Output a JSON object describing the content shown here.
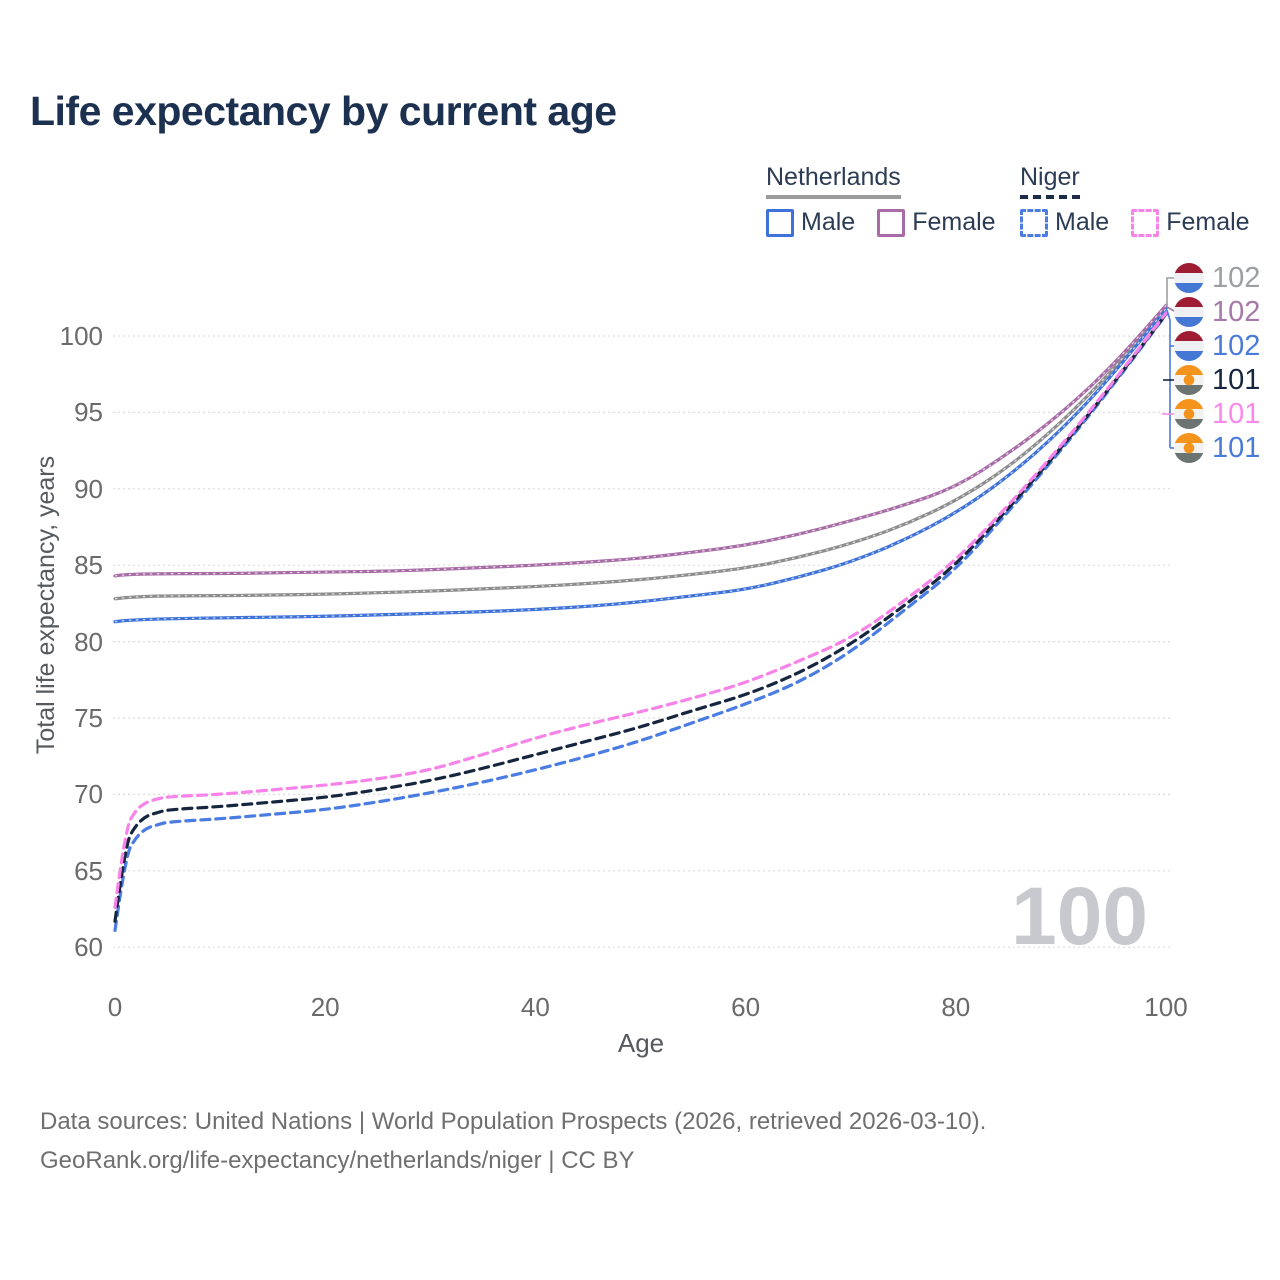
{
  "title": "Life expectancy by current age",
  "watermark_age": "100",
  "legend": {
    "groups": [
      {
        "name": "Netherlands",
        "line_style": "solid",
        "underline_color": "#9b9b9b",
        "items": [
          {
            "label": "Male",
            "color": "#3e72d9",
            "dashed": false
          },
          {
            "label": "Female",
            "color": "#a76ca6",
            "dashed": false
          }
        ]
      },
      {
        "name": "Niger",
        "line_style": "dashed",
        "underline_color": "#1e2c49",
        "items": [
          {
            "label": "Male",
            "color": "#4a7ce2",
            "dashed": true
          },
          {
            "label": "Female",
            "color": "#f783e8",
            "dashed": true
          }
        ]
      }
    ]
  },
  "chart_data": {
    "type": "line",
    "title": "Life expectancy by current age",
    "xlabel": "Age",
    "ylabel": "Total life expectancy, years",
    "x_ticks": [
      0,
      20,
      40,
      60,
      80,
      100
    ],
    "y_ticks": [
      60,
      65,
      70,
      75,
      80,
      85,
      90,
      95,
      100
    ],
    "xlim": [
      0,
      100
    ],
    "ylim": [
      59.5,
      103
    ],
    "grid": "horizontal-dotted",
    "legend_position": "top-right",
    "series": [
      {
        "name": "Netherlands All",
        "country": "Netherlands",
        "sex": "All",
        "color": "#8d8d8d",
        "line_style": "solid",
        "end_label": "102",
        "points": [
          [
            0,
            82.8
          ],
          [
            1,
            82.9
          ],
          [
            5,
            83.0
          ],
          [
            10,
            83.0
          ],
          [
            15,
            83.05
          ],
          [
            20,
            83.1
          ],
          [
            25,
            83.2
          ],
          [
            30,
            83.3
          ],
          [
            35,
            83.45
          ],
          [
            40,
            83.6
          ],
          [
            45,
            83.8
          ],
          [
            50,
            84.05
          ],
          [
            55,
            84.4
          ],
          [
            60,
            84.8
          ],
          [
            65,
            85.5
          ],
          [
            70,
            86.4
          ],
          [
            75,
            87.6
          ],
          [
            80,
            89.2
          ],
          [
            85,
            91.4
          ],
          [
            90,
            94.3
          ],
          [
            95,
            97.8
          ],
          [
            100,
            101.9
          ]
        ]
      },
      {
        "name": "Netherlands Male",
        "country": "Netherlands",
        "sex": "Male",
        "color": "#3e72d9",
        "line_style": "solid",
        "end_label": "102",
        "points": [
          [
            0,
            81.3
          ],
          [
            1,
            81.4
          ],
          [
            5,
            81.5
          ],
          [
            10,
            81.55
          ],
          [
            15,
            81.6
          ],
          [
            20,
            81.65
          ],
          [
            25,
            81.75
          ],
          [
            30,
            81.85
          ],
          [
            35,
            81.95
          ],
          [
            40,
            82.1
          ],
          [
            45,
            82.3
          ],
          [
            50,
            82.6
          ],
          [
            55,
            83.0
          ],
          [
            60,
            83.4
          ],
          [
            65,
            84.2
          ],
          [
            70,
            85.2
          ],
          [
            75,
            86.6
          ],
          [
            80,
            88.4
          ],
          [
            85,
            90.8
          ],
          [
            90,
            93.8
          ],
          [
            95,
            97.5
          ],
          [
            100,
            101.8
          ]
        ]
      },
      {
        "name": "Netherlands Female",
        "country": "Netherlands",
        "sex": "Female",
        "color": "#a76ca6",
        "line_style": "solid",
        "end_label": "102",
        "points": [
          [
            0,
            84.3
          ],
          [
            1,
            84.4
          ],
          [
            5,
            84.45
          ],
          [
            10,
            84.45
          ],
          [
            15,
            84.5
          ],
          [
            20,
            84.55
          ],
          [
            25,
            84.6
          ],
          [
            30,
            84.7
          ],
          [
            35,
            84.85
          ],
          [
            40,
            85.0
          ],
          [
            45,
            85.2
          ],
          [
            50,
            85.45
          ],
          [
            55,
            85.85
          ],
          [
            60,
            86.3
          ],
          [
            65,
            87.0
          ],
          [
            70,
            87.9
          ],
          [
            75,
            88.9
          ],
          [
            80,
            90.1
          ],
          [
            85,
            92.3
          ],
          [
            90,
            94.9
          ],
          [
            95,
            98.1
          ],
          [
            100,
            102.0
          ]
        ]
      },
      {
        "name": "Niger Male",
        "country": "Niger",
        "sex": "Male",
        "color": "#4a7ce2",
        "line_style": "dashed",
        "end_label": "101",
        "points": [
          [
            0,
            61.1
          ],
          [
            1,
            66.0
          ],
          [
            2,
            67.2
          ],
          [
            3,
            67.8
          ],
          [
            4,
            68.0
          ],
          [
            5,
            68.2
          ],
          [
            10,
            68.4
          ],
          [
            15,
            68.7
          ],
          [
            20,
            69.0
          ],
          [
            25,
            69.5
          ],
          [
            30,
            70.1
          ],
          [
            35,
            70.8
          ],
          [
            40,
            71.6
          ],
          [
            45,
            72.5
          ],
          [
            50,
            73.5
          ],
          [
            55,
            74.7
          ],
          [
            60,
            75.9
          ],
          [
            65,
            77.3
          ],
          [
            70,
            79.3
          ],
          [
            75,
            82.0
          ],
          [
            80,
            84.7
          ],
          [
            85,
            88.5
          ],
          [
            90,
            92.5
          ],
          [
            95,
            96.8
          ],
          [
            100,
            101.4
          ]
        ]
      },
      {
        "name": "Niger All",
        "country": "Niger",
        "sex": "All",
        "color": "#17263f",
        "line_style": "dashed",
        "end_label": "101",
        "points": [
          [
            0,
            61.7
          ],
          [
            1,
            66.8
          ],
          [
            2,
            68.0
          ],
          [
            3,
            68.6
          ],
          [
            4,
            68.8
          ],
          [
            5,
            69.0
          ],
          [
            10,
            69.2
          ],
          [
            15,
            69.5
          ],
          [
            20,
            69.8
          ],
          [
            25,
            70.3
          ],
          [
            30,
            70.9
          ],
          [
            35,
            71.7
          ],
          [
            40,
            72.6
          ],
          [
            45,
            73.5
          ],
          [
            50,
            74.4
          ],
          [
            55,
            75.5
          ],
          [
            60,
            76.5
          ],
          [
            65,
            77.9
          ],
          [
            70,
            79.8
          ],
          [
            75,
            82.3
          ],
          [
            80,
            85.0
          ],
          [
            85,
            88.7
          ],
          [
            90,
            92.65
          ],
          [
            95,
            96.9
          ],
          [
            100,
            101.45
          ]
        ]
      },
      {
        "name": "Niger Female",
        "country": "Niger",
        "sex": "Female",
        "color": "#f783e8",
        "line_style": "dashed",
        "end_label": "101",
        "points": [
          [
            0,
            62.6
          ],
          [
            1,
            67.8
          ],
          [
            2,
            69.0
          ],
          [
            3,
            69.5
          ],
          [
            4,
            69.7
          ],
          [
            5,
            69.85
          ],
          [
            10,
            70.0
          ],
          [
            15,
            70.3
          ],
          [
            20,
            70.6
          ],
          [
            25,
            71.0
          ],
          [
            30,
            71.6
          ],
          [
            35,
            72.6
          ],
          [
            40,
            73.7
          ],
          [
            45,
            74.6
          ],
          [
            50,
            75.4
          ],
          [
            55,
            76.3
          ],
          [
            60,
            77.3
          ],
          [
            65,
            78.7
          ],
          [
            70,
            80.2
          ],
          [
            75,
            82.6
          ],
          [
            80,
            85.3
          ],
          [
            85,
            88.9
          ],
          [
            90,
            92.8
          ],
          [
            95,
            97.0
          ],
          [
            100,
            101.5
          ]
        ]
      }
    ]
  },
  "end_labels": [
    {
      "flag": "netherlands",
      "value": "102",
      "color": "#9b9fa3"
    },
    {
      "flag": "netherlands",
      "value": "102",
      "color": "#a57aaa"
    },
    {
      "flag": "netherlands",
      "value": "102",
      "color": "#4a7bd9"
    },
    {
      "flag": "niger",
      "value": "101",
      "color": "#17263f"
    },
    {
      "flag": "niger",
      "value": "101",
      "color": "#f98ae9"
    },
    {
      "flag": "niger",
      "value": "101",
      "color": "#4a7bd9"
    }
  ],
  "flags": {
    "netherlands": {
      "top": "#9f1d33",
      "middle": "#eef0f3",
      "bottom": "#4478d4"
    },
    "niger": {
      "top": "#f5941d",
      "middle": "#f2f2f0",
      "bottom": "#6b7470",
      "dot": "#f5941d"
    }
  },
  "footer": {
    "line1": "Data sources: United Nations | World Population Prospects (2026, retrieved 2026-03-10).",
    "line2": "GeoRank.org/life-expectancy/netherlands/niger | CC BY"
  }
}
